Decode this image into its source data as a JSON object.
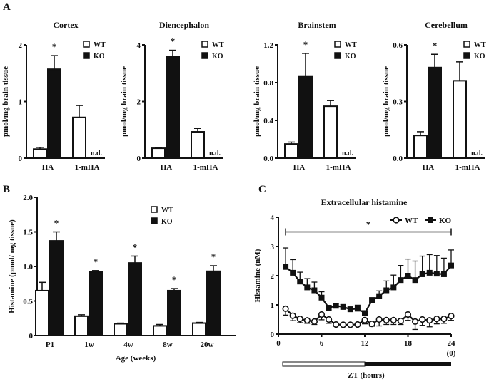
{
  "panel_labels": [
    "A",
    "B",
    "C"
  ],
  "chart_data": [
    {
      "type": "bar",
      "panel": "A",
      "title": "Cortex",
      "ylabel": "pmol/mg brain tissue",
      "categories": [
        "HA",
        "1-mHA"
      ],
      "ylim": [
        0,
        2
      ],
      "yticks": [
        "0",
        "1",
        "2"
      ],
      "tickvals": [
        0,
        1,
        2
      ],
      "series": [
        {
          "name": "WT",
          "values": [
            0.16,
            0.72
          ],
          "errors": [
            0.03,
            0.21
          ]
        },
        {
          "name": "KO",
          "values": [
            1.57,
            null
          ],
          "errors": [
            0.24,
            null
          ]
        }
      ],
      "annotations": {
        "HA": "*",
        "1-mHA": "n.d."
      },
      "legend": "top-right"
    },
    {
      "type": "bar",
      "panel": "A",
      "title": "Diencephalon",
      "ylabel": "pmol/mg brain tissue",
      "categories": [
        "HA",
        "1-mHA"
      ],
      "ylim": [
        0,
        4
      ],
      "yticks": [
        "0",
        "2",
        "4"
      ],
      "tickvals": [
        0,
        2,
        4
      ],
      "series": [
        {
          "name": "WT",
          "values": [
            0.35,
            0.93
          ],
          "errors": [
            0.03,
            0.12
          ]
        },
        {
          "name": "KO",
          "values": [
            3.58,
            null
          ],
          "errors": [
            0.23,
            null
          ]
        }
      ],
      "annotations": {
        "HA": "*",
        "1-mHA": "n.d."
      },
      "legend": "top-right"
    },
    {
      "type": "bar",
      "panel": "A",
      "title": "Brainstem",
      "ylabel": "pmol/mg brain tissue",
      "categories": [
        "HA",
        "1-mHA"
      ],
      "ylim": [
        0,
        1.2
      ],
      "yticks": [
        "0.0",
        "0.4",
        "0.8",
        "1.2"
      ],
      "tickvals": [
        0,
        0.4,
        0.8,
        1.2
      ],
      "series": [
        {
          "name": "WT",
          "values": [
            0.15,
            0.55
          ],
          "errors": [
            0.02,
            0.06
          ]
        },
        {
          "name": "KO",
          "values": [
            0.87,
            null
          ],
          "errors": [
            0.24,
            null
          ]
        }
      ],
      "annotations": {
        "HA": "*",
        "1-mHA": "n.d."
      },
      "legend": "top-right"
    },
    {
      "type": "bar",
      "panel": "A",
      "title": "Cerebellum",
      "ylabel": "pmol/mg brain tissue",
      "categories": [
        "HA",
        "1-mHA"
      ],
      "ylim": [
        0,
        0.6
      ],
      "yticks": [
        "0.0",
        "0.3",
        "0.6"
      ],
      "tickvals": [
        0,
        0.3,
        0.6
      ],
      "series": [
        {
          "name": "WT",
          "values": [
            0.12,
            0.41
          ],
          "errors": [
            0.02,
            0.1
          ]
        },
        {
          "name": "KO",
          "values": [
            0.48,
            null
          ],
          "errors": [
            0.07,
            null
          ]
        }
      ],
      "annotations": {
        "HA": "*",
        "1-mHA": "n.d."
      },
      "legend": "top-right"
    },
    {
      "type": "bar",
      "panel": "B",
      "title": "",
      "xlabel": "Age (weeks)",
      "ylabel": "Histamine (pmol/ mg tissue)",
      "categories": [
        "P1",
        "1w",
        "4w",
        "8w",
        "20w"
      ],
      "ylim": [
        0,
        2
      ],
      "yticks": [
        "0",
        "0.5",
        "1.0",
        "1.5",
        "2.0"
      ],
      "tickvals": [
        0,
        0.5,
        1,
        1.5,
        2
      ],
      "series": [
        {
          "name": "WT",
          "values": [
            0.65,
            0.28,
            0.17,
            0.14,
            0.18
          ],
          "errors": [
            0.12,
            0.02,
            0.01,
            0.02,
            0.01
          ]
        },
        {
          "name": "KO",
          "values": [
            1.37,
            0.92,
            1.05,
            0.65,
            0.93
          ],
          "errors": [
            0.13,
            0.02,
            0.1,
            0.03,
            0.08
          ]
        }
      ],
      "annotations": [
        "*",
        "*",
        "*",
        "*",
        "*"
      ],
      "legend": "top-right"
    },
    {
      "type": "line",
      "panel": "C",
      "title": "Extracellular histamine",
      "xlabel": "ZT (hours)",
      "ylabel": "Histamine (nM)",
      "xlim": [
        0,
        24
      ],
      "ylim": [
        0,
        4
      ],
      "xticks": [
        "0",
        "6",
        "12",
        "18",
        "24"
      ],
      "xtickvals": [
        0,
        6,
        12,
        18,
        24
      ],
      "xtick_extra": "(0)",
      "yticks": [
        "0",
        "1",
        "2",
        "3",
        "4"
      ],
      "tickvals": [
        0,
        1,
        2,
        3,
        4
      ],
      "x": [
        1,
        2,
        3,
        4,
        5,
        6,
        7,
        8,
        9,
        10,
        11,
        12,
        13,
        14,
        15,
        16,
        17,
        18,
        19,
        20,
        21,
        22,
        23,
        24
      ],
      "series": [
        {
          "name": "WT",
          "marker": "open-circle",
          "values": [
            0.87,
            0.63,
            0.52,
            0.47,
            0.43,
            0.67,
            0.5,
            0.33,
            0.32,
            0.32,
            0.33,
            0.48,
            0.35,
            0.5,
            0.48,
            0.48,
            0.45,
            0.67,
            0.43,
            0.5,
            0.47,
            0.52,
            0.52,
            0.62
          ],
          "errors": [
            0.22,
            0.17,
            0.13,
            0.1,
            0.1,
            0.18,
            0.13,
            0.03,
            0.03,
            0.03,
            0.03,
            0.13,
            0.08,
            0.22,
            0.15,
            0.15,
            0.12,
            0.2,
            0.27,
            0.2,
            0.22,
            0.17,
            0.15,
            0.15
          ]
        },
        {
          "name": "KO",
          "marker": "filled-square",
          "values": [
            2.3,
            2.1,
            1.8,
            1.6,
            1.5,
            1.25,
            0.9,
            0.97,
            0.93,
            0.85,
            0.87,
            0.72,
            1.15,
            1.3,
            1.5,
            1.6,
            1.85,
            2.0,
            1.85,
            2.05,
            2.1,
            2.07,
            2.05,
            2.35
          ],
          "errors": [
            0.65,
            0.45,
            0.32,
            0.3,
            0.28,
            0.2,
            0.08,
            0.08,
            0.08,
            0.08,
            0.12,
            0.08,
            0.1,
            0.18,
            0.32,
            0.42,
            0.5,
            0.57,
            0.65,
            0.62,
            0.62,
            0.62,
            0.55,
            0.53
          ]
        }
      ],
      "significance": {
        "label": "*",
        "from": 1,
        "to": 24
      },
      "light_dark_bar": {
        "light": [
          0,
          12
        ],
        "dark": [
          12,
          24
        ]
      },
      "legend": "top-right"
    }
  ]
}
